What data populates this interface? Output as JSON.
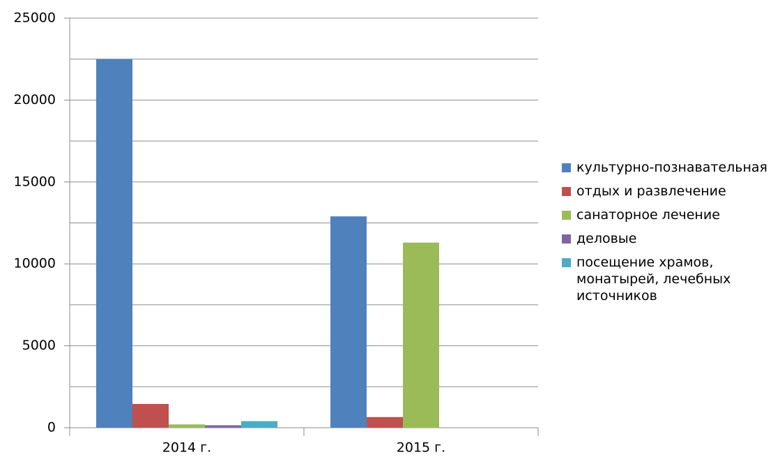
{
  "chart_data": {
    "type": "bar",
    "categories": [
      "2014 г.",
      "2015 г."
    ],
    "series": [
      {
        "name": "культурно-познавательная",
        "color": "#4f81bd",
        "values": [
          22500,
          12900
        ]
      },
      {
        "name": "отдых и развлечение",
        "color": "#c0504d",
        "values": [
          1450,
          650
        ]
      },
      {
        "name": "санаторное лечение",
        "color": "#9bbb59",
        "values": [
          200,
          11300
        ]
      },
      {
        "name": "деловые",
        "color": "#8064a2",
        "values": [
          150,
          0
        ]
      },
      {
        "name": "посещение храмов, монатырей, лечебных источников",
        "color": "#4bacc6",
        "values": [
          400,
          0
        ]
      }
    ],
    "ylim": [
      0,
      25000
    ],
    "yticks": [
      0,
      5000,
      10000,
      15000,
      20000,
      25000
    ],
    "ygrid": [
      2500,
      5000,
      7500,
      10000,
      12500,
      15000,
      17500,
      20000,
      22500,
      25000
    ],
    "grid": true,
    "legend": "right"
  }
}
